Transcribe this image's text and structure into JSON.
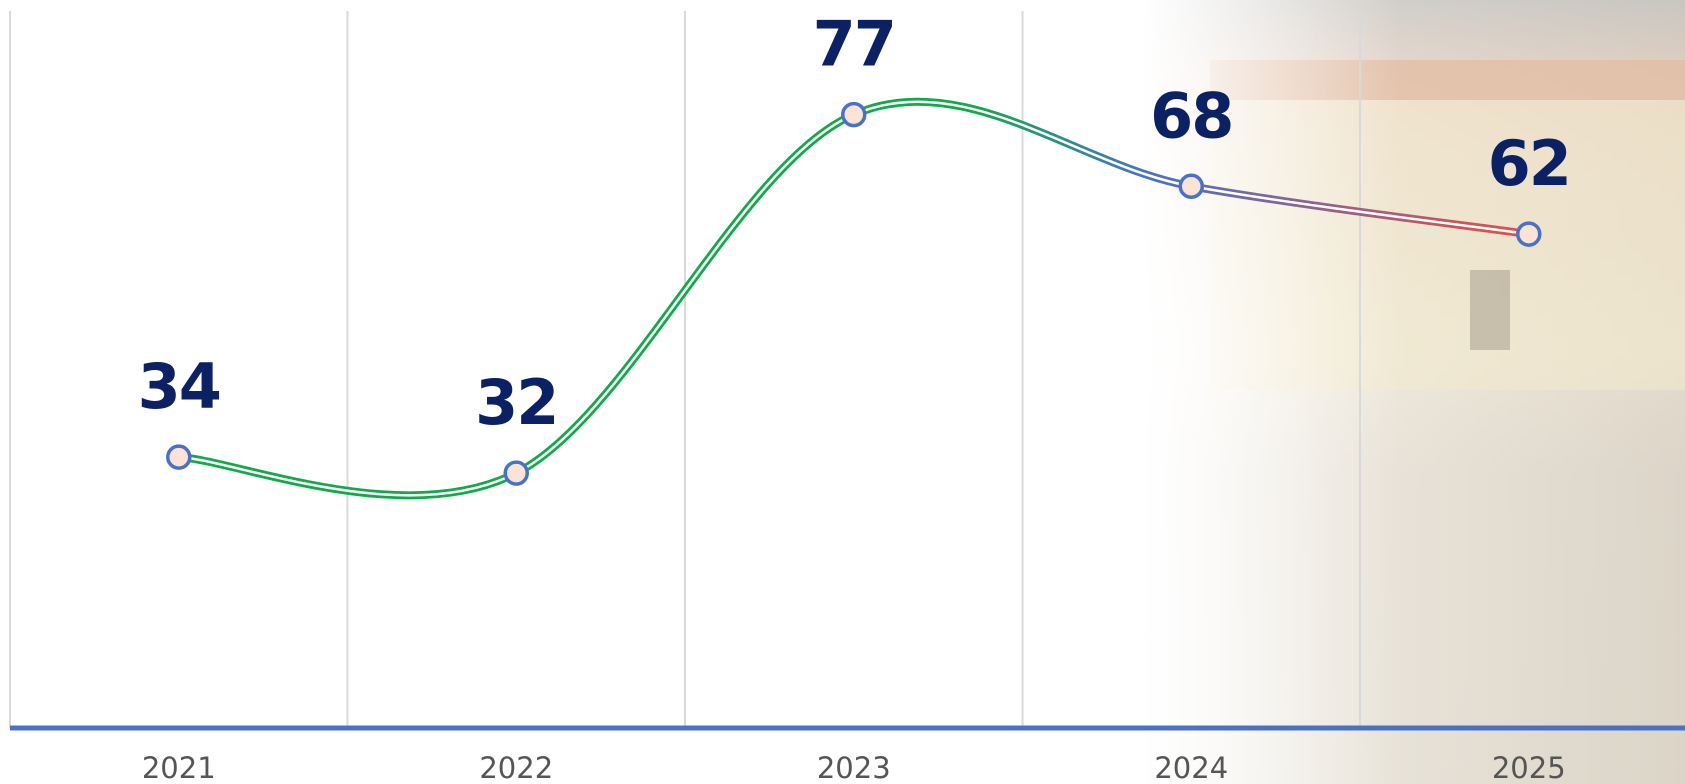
{
  "chart_data": {
    "type": "line",
    "categories": [
      "2021",
      "2022",
      "2023",
      "2024",
      "2025"
    ],
    "values": [
      34,
      32,
      77,
      68,
      62
    ],
    "color": "#13a84a",
    "ylim": [
      0,
      90
    ]
  }
}
